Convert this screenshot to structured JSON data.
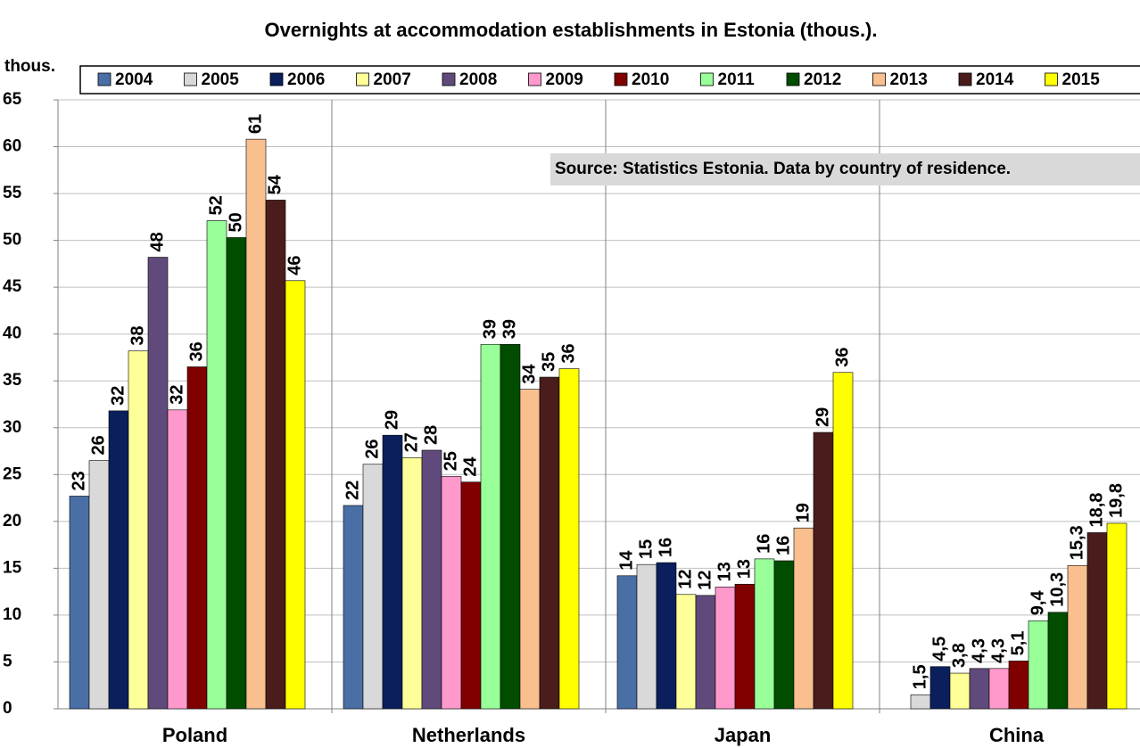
{
  "chart_data": {
    "type": "bar",
    "title": "Overnights at accommodation establishments in Estonia (thous.).",
    "y_label": "thous.",
    "annotation": "Source: Statistics Estonia.  Data by country of residence.",
    "categories": [
      "Poland",
      "Netherlands",
      "Japan",
      "China"
    ],
    "series": [
      {
        "name": "2004",
        "color": "#4a6fa5",
        "values": [
          22.7,
          21.7,
          14.2,
          null
        ],
        "value_labels": [
          "23",
          "22",
          "14",
          null
        ]
      },
      {
        "name": "2005",
        "color": "#d9d9d9",
        "values": [
          26.5,
          26.1,
          15.4,
          1.5
        ],
        "value_labels": [
          "26",
          "26",
          "15",
          "1,5"
        ]
      },
      {
        "name": "2006",
        "color": "#0a1f5c",
        "values": [
          31.8,
          29.2,
          15.6,
          4.5
        ],
        "value_labels": [
          "32",
          "29",
          "16",
          "4,5"
        ]
      },
      {
        "name": "2007",
        "color": "#ffff99",
        "values": [
          38.2,
          26.8,
          12.2,
          3.8
        ],
        "value_labels": [
          "38",
          "27",
          "12",
          "3,8"
        ]
      },
      {
        "name": "2008",
        "color": "#604a7b",
        "values": [
          48.2,
          27.6,
          12.1,
          4.3
        ],
        "value_labels": [
          "48",
          "28",
          "12",
          "4,3"
        ]
      },
      {
        "name": "2009",
        "color": "#ff99cc",
        "values": [
          31.9,
          24.8,
          13.0,
          4.3
        ],
        "value_labels": [
          "32",
          "25",
          "13",
          "4,3"
        ]
      },
      {
        "name": "2010",
        "color": "#800000",
        "values": [
          36.5,
          24.2,
          13.3,
          5.1
        ],
        "value_labels": [
          "36",
          "24",
          "13",
          "5,1"
        ]
      },
      {
        "name": "2011",
        "color": "#99ff99",
        "values": [
          52.1,
          38.9,
          16.0,
          9.4
        ],
        "value_labels": [
          "52",
          "39",
          "16",
          "9,4"
        ]
      },
      {
        "name": "2012",
        "color": "#004d00",
        "values": [
          50.3,
          38.9,
          15.8,
          10.3
        ],
        "value_labels": [
          "50",
          "39",
          "16",
          "10,3"
        ]
      },
      {
        "name": "2013",
        "color": "#fabf8f",
        "values": [
          60.8,
          34.1,
          19.3,
          15.3
        ],
        "value_labels": [
          "61",
          "34",
          "19",
          "15,3"
        ]
      },
      {
        "name": "2014",
        "color": "#4a1c1c",
        "values": [
          54.3,
          35.4,
          29.5,
          18.8
        ],
        "value_labels": [
          "54",
          "35",
          "29",
          "18,8"
        ]
      },
      {
        "name": "2015",
        "color": "#ffff00",
        "values": [
          45.7,
          36.3,
          35.9,
          19.8
        ],
        "value_labels": [
          "46",
          "36",
          "36",
          "19,8"
        ]
      }
    ],
    "ylim": [
      0,
      65
    ],
    "yticks": [
      0,
      5,
      10,
      15,
      20,
      25,
      30,
      35,
      40,
      45,
      50,
      55,
      60,
      65
    ],
    "grid": true,
    "legend": "top"
  }
}
